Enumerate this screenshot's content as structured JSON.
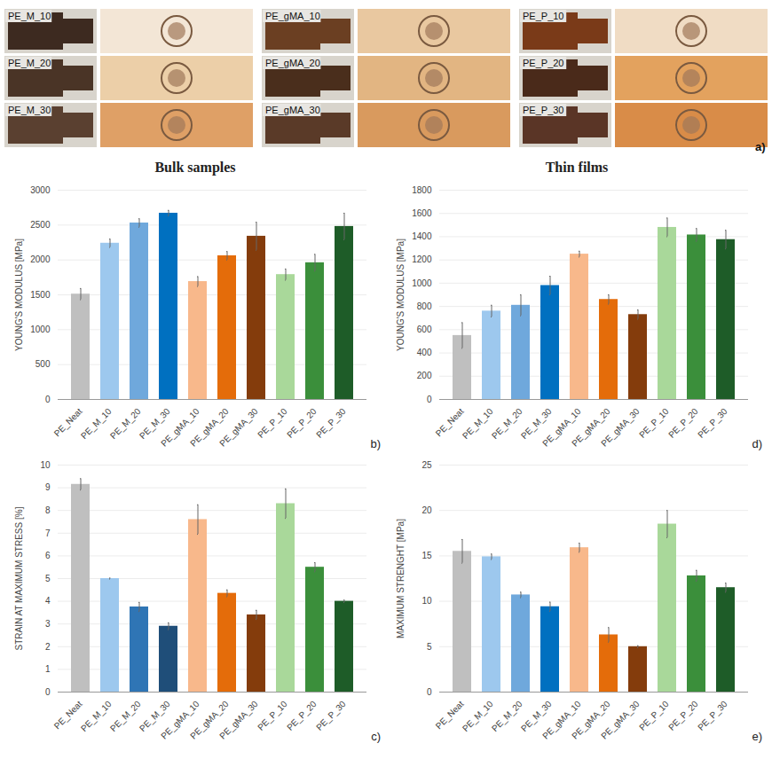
{
  "photos": {
    "panel": "a)",
    "groups": [
      [
        "PE_M_10",
        "PE_M_20",
        "PE_M_30"
      ],
      [
        "PE_gMA_10",
        "PE_gMA_20",
        "PE_gMA_30"
      ],
      [
        "PE_P_10",
        "PE_P_20",
        "PE_P_30"
      ]
    ]
  },
  "chart_data": [
    {
      "type": "bar",
      "panel": "b)",
      "title": "Bulk samples",
      "y_label": "YOUNG'S MODULUS [MPa]",
      "categories": [
        "PE_Neat",
        "PE_M_10",
        "PE_M_20",
        "PE_M_30",
        "PE_gMA_10",
        "PE_gMA_20",
        "PE_gMA_30",
        "PE_P_10",
        "PE_P_20",
        "PE_P_30"
      ],
      "values": [
        1510,
        2240,
        2530,
        2670,
        1690,
        2060,
        2340,
        1790,
        1960,
        2480
      ],
      "errors": [
        80,
        60,
        60,
        40,
        70,
        60,
        200,
        80,
        120,
        190
      ],
      "colors": [
        "#bfbfbf",
        "#9dc8ee",
        "#6fa8dc",
        "#0070c0",
        "#f8b88b",
        "#e46c0a",
        "#843c0c",
        "#a9d89a",
        "#3b8f3b",
        "#1e5c28"
      ],
      "ylim": [
        0,
        3000
      ],
      "yticks": [
        0,
        500,
        1000,
        1500,
        2000,
        2500,
        3000
      ],
      "grid": true
    },
    {
      "type": "bar",
      "panel": "d)",
      "title": "Thin films",
      "y_label": "YOUNG'S MODULUS [MPa]",
      "categories": [
        "PE_Neat",
        "PE_M_10",
        "PE_M_20",
        "PE_M_30",
        "PE_gMA_10",
        "PE_gMA_20",
        "PE_gMA_30",
        "PE_P_10",
        "PE_P_20",
        "PE_P_30"
      ],
      "values": [
        550,
        760,
        810,
        980,
        1250,
        860,
        730,
        1480,
        1415,
        1375
      ],
      "errors": [
        110,
        50,
        90,
        80,
        25,
        40,
        40,
        80,
        55,
        80
      ],
      "colors": [
        "#bfbfbf",
        "#9dc8ee",
        "#6fa8dc",
        "#0070c0",
        "#f8b88b",
        "#e46c0a",
        "#843c0c",
        "#a9d89a",
        "#3b8f3b",
        "#1e5c28"
      ],
      "ylim": [
        0,
        1800
      ],
      "yticks": [
        0,
        200,
        400,
        600,
        800,
        1000,
        1200,
        1400,
        1600,
        1800
      ],
      "grid": true
    },
    {
      "type": "bar",
      "panel": "c)",
      "y_label": "STRAIN AT MAXIMUM STRESS [%]",
      "categories": [
        "PE_Neat",
        "PE_M_10",
        "PE_M_20",
        "PE_M_30",
        "PE_gMA_10",
        "PE_gMA_20",
        "PE_gMA_30",
        "PE_P_10",
        "PE_P_20",
        "PE_P_30"
      ],
      "values": [
        9.15,
        5.0,
        3.75,
        2.9,
        7.6,
        4.35,
        3.4,
        8.3,
        5.5,
        4.0
      ],
      "errors": [
        0.25,
        0.02,
        0.2,
        0.15,
        0.65,
        0.15,
        0.2,
        0.65,
        0.2,
        0.05
      ],
      "colors": [
        "#bfbfbf",
        "#9dc8ee",
        "#2f75b5",
        "#1f4e79",
        "#f8b88b",
        "#e46c0a",
        "#843c0c",
        "#a9d89a",
        "#3b8f3b",
        "#1e5c28"
      ],
      "ylim": [
        0,
        10
      ],
      "yticks": [
        0,
        1,
        2,
        3,
        4,
        5,
        6,
        7,
        8,
        9,
        10
      ],
      "grid": true
    },
    {
      "type": "bar",
      "panel": "e)",
      "y_label": "MAXIMUM STRENGHT [MPa]",
      "categories": [
        "PE_Neat",
        "PE_M_10",
        "PE_M_20",
        "PE_M_30",
        "PE_gMA_10",
        "PE_gMA_20",
        "PE_gMA_30",
        "PE_P_10",
        "PE_P_20",
        "PE_P_30"
      ],
      "values": [
        15.5,
        14.9,
        10.7,
        9.4,
        15.9,
        6.3,
        5.0,
        18.5,
        12.8,
        11.5
      ],
      "errors": [
        1.3,
        0.3,
        0.3,
        0.5,
        0.5,
        0.8,
        0.1,
        1.5,
        0.6,
        0.5
      ],
      "colors": [
        "#bfbfbf",
        "#9dc8ee",
        "#6fa8dc",
        "#0070c0",
        "#f8b88b",
        "#e46c0a",
        "#843c0c",
        "#a9d89a",
        "#3b8f3b",
        "#1e5c28"
      ],
      "ylim": [
        0,
        25
      ],
      "yticks": [
        0,
        5,
        10,
        15,
        20,
        25
      ],
      "grid": true
    }
  ]
}
